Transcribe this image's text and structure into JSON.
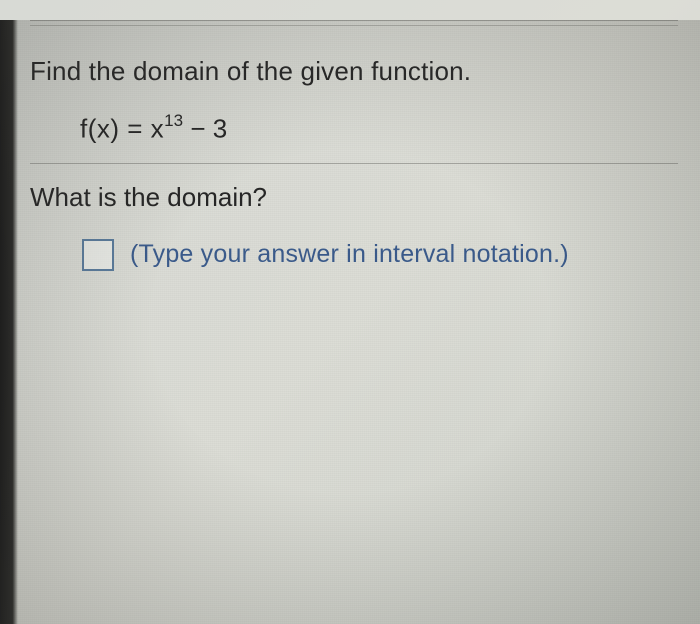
{
  "problem": {
    "prompt": "Find the domain of the given function.",
    "equation_lhs": "f(x) = x",
    "equation_exp": "13",
    "equation_rhs": " − 3",
    "question": "What is the domain?",
    "hint": "(Type your answer in interval notation.)"
  },
  "style": {
    "text_color": "#262626",
    "hint_color": "#3a5a8a",
    "box_border_color": "#5a7a9a",
    "background_base": "#d8dad5",
    "rule_color": "rgba(100,100,95,0.45)",
    "prompt_fontsize": 26,
    "hint_fontsize": 25,
    "equation_fontsize": 26
  }
}
